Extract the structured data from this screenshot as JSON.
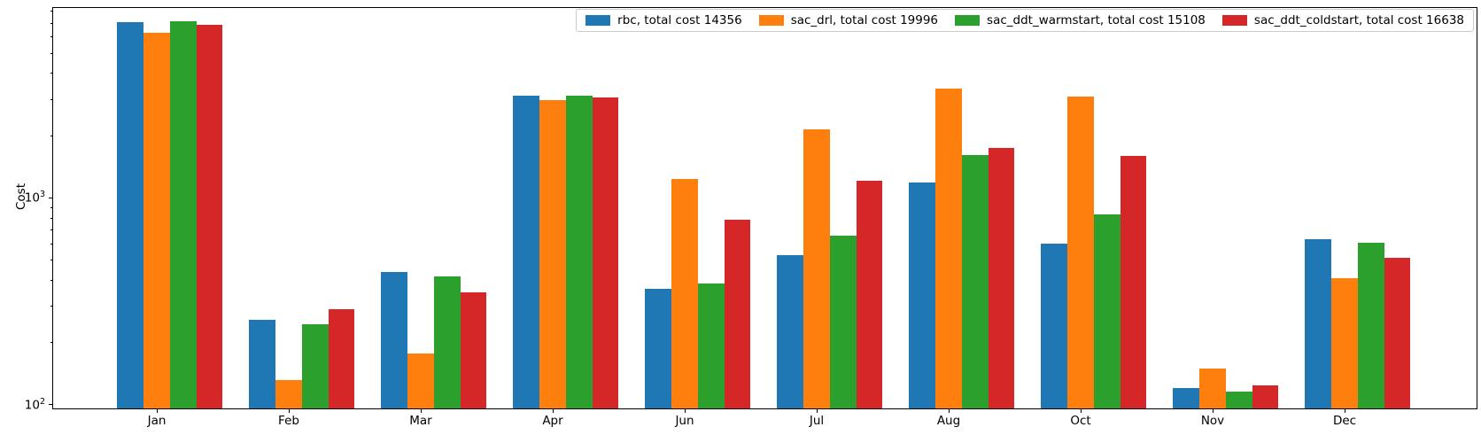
{
  "chart_data": {
    "type": "bar",
    "title": "",
    "xlabel": "",
    "ylabel": "Cost",
    "yscale": "log",
    "ylim": [
      96,
      8300
    ],
    "grid": false,
    "legend_position": "upper right",
    "yticks": [
      "10^2",
      "10^3"
    ],
    "categories": [
      "Jan",
      "Feb",
      "Mar",
      "Apr",
      "Jun",
      "Jul",
      "Aug",
      "Oct",
      "Nov",
      "Dec"
    ],
    "series": [
      {
        "name": "rbc",
        "total_cost": 14356,
        "legend_label": "rbc, total cost 14356",
        "color": "#1f77b4",
        "values": [
          7100,
          258,
          437,
          3130,
          364,
          531,
          1186,
          601,
          121,
          630
        ]
      },
      {
        "name": "sac_drl",
        "total_cost": 19996,
        "legend_label": "sac_drl, total cost 19996",
        "color": "#ff7f0e",
        "values": [
          6300,
          131,
          177,
          2970,
          1233,
          2154,
          3388,
          3101,
          149,
          408
        ]
      },
      {
        "name": "sac_ddt_warmstart",
        "total_cost": 15108,
        "legend_label": "sac_ddt_warmstart, total cost 15108",
        "color": "#2ca02c",
        "values": [
          7140,
          245,
          419,
          3120,
          386,
          655,
          1615,
          835,
          116,
          610
        ]
      },
      {
        "name": "sac_ddt_coldstart",
        "total_cost": 16638,
        "legend_label": "sac_ddt_coldstart, total cost 16638",
        "color": "#d62728",
        "values": [
          6900,
          290,
          348,
          3050,
          789,
          1209,
          1740,
          1604,
          124,
          514
        ]
      }
    ]
  }
}
